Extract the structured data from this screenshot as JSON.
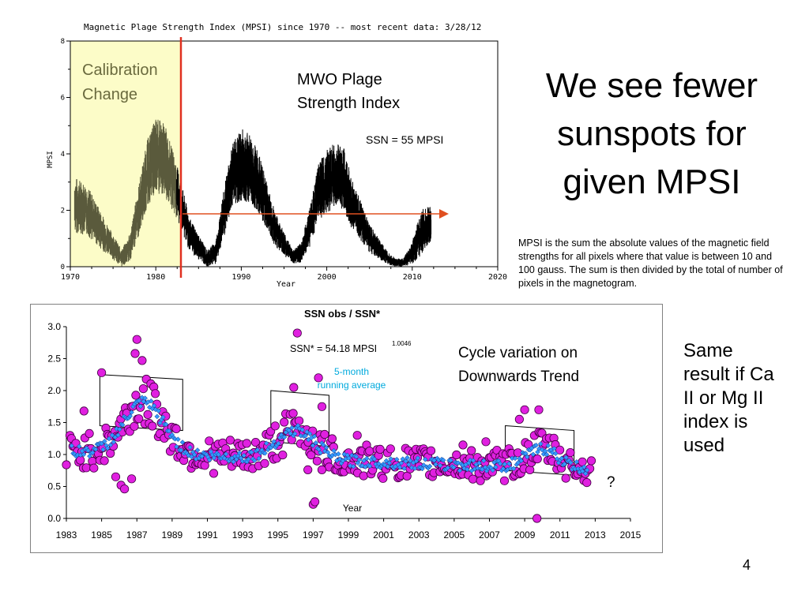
{
  "slide": {
    "title": "We see fewer sunspots for given MPSI",
    "definition": "MPSI is the sum the absolute values of the magnetic field strengths for all pixels where that value is between 10 and 100 gauss. The sum is then divided by the total of number of pixels in the magnetogram.",
    "side_note": "Same result if Ca II or Mg II index is used",
    "page_number": "4"
  },
  "colors": {
    "calibration_band": "#fcfcc8",
    "calibration_line": "#e03020",
    "trend_arrow": "#e05020",
    "early_trace": "#5a5a3c",
    "trace": "#000000",
    "observed_marker": "#e020e0",
    "running_average": "#3399ff",
    "running_label": "#00aadd"
  },
  "chart_data": [
    {
      "type": "line",
      "title": "Magnetic Plage Strength Index (MPSI) since 1970 -- most recent data:  3/28/12",
      "xlabel": "Year",
      "ylabel": "MPSI",
      "xlim": [
        1970,
        2020
      ],
      "ylim": [
        0,
        8
      ],
      "x_ticks": [
        "1970",
        "1980",
        "1990",
        "2000",
        "2010",
        "2020"
      ],
      "y_ticks": [
        "0",
        "2",
        "4",
        "6",
        "8"
      ],
      "grid": false,
      "annotations": {
        "calibration": "Calibration Change",
        "series_label": "MWO Plage Strength Index",
        "reference": "SSN = 55 MPSI"
      },
      "calibration_change_year": 1982.4,
      "reference_level": 1.9,
      "cycle_envelope": {
        "x": [
          1970.5,
          1972,
          1974,
          1976,
          1977,
          1978,
          1979,
          1980,
          1981,
          1982.4,
          1984,
          1986,
          1987,
          1988,
          1989,
          1990,
          1991,
          1992,
          1994,
          1996,
          1997,
          1998,
          1999,
          2000,
          2001,
          2002,
          2003,
          2005,
          2007,
          2008,
          2009,
          2010,
          2011,
          2012.2
        ],
        "mean": [
          2.2,
          2.0,
          1.1,
          0.3,
          0.7,
          2.0,
          3.3,
          3.9,
          3.8,
          2.7,
          1.1,
          0.3,
          0.5,
          1.9,
          3.3,
          3.6,
          3.5,
          3.0,
          1.3,
          0.35,
          0.5,
          1.4,
          2.6,
          3.0,
          3.3,
          3.1,
          2.2,
          1.0,
          0.35,
          0.15,
          0.15,
          0.5,
          1.2,
          1.5
        ],
        "spread": [
          1.0,
          0.9,
          0.6,
          0.3,
          0.5,
          0.9,
          1.2,
          1.4,
          1.3,
          1.0,
          0.6,
          0.3,
          0.4,
          0.9,
          1.1,
          1.3,
          1.2,
          1.1,
          0.6,
          0.25,
          0.35,
          0.7,
          1.0,
          1.2,
          1.1,
          1.1,
          0.9,
          0.5,
          0.25,
          0.15,
          0.15,
          0.4,
          0.8,
          0.7
        ]
      }
    },
    {
      "type": "scatter",
      "title": "SSN obs / SSN*",
      "xlabel": "Year",
      "ylabel": "",
      "xlim": [
        1983,
        2015
      ],
      "ylim": [
        0,
        3.0
      ],
      "x_ticks": [
        "1983",
        "1985",
        "1987",
        "1989",
        "1991",
        "1993",
        "1995",
        "1997",
        "1999",
        "2001",
        "2003",
        "2005",
        "2007",
        "2009",
        "2011",
        "2013",
        "2015"
      ],
      "y_ticks": [
        "0.0",
        "0.5",
        "1.0",
        "1.5",
        "2.0",
        "2.5",
        "3.0"
      ],
      "grid": false,
      "annotations": {
        "formula": "SSN* = 54.18 MPSI",
        "exponent": "1.0046",
        "running_label_1": "5-month",
        "running_label_2": "running average",
        "trend_label_1": "Cycle variation on",
        "trend_label_2": "Downwards Trend",
        "question": "?"
      },
      "highlight_boxes": [
        {
          "x": [
            1984.9,
            1989.6
          ],
          "y": [
            1.45,
            2.25
          ]
        },
        {
          "x": [
            1994.6,
            1997.9
          ],
          "y": [
            1.2,
            2.0
          ]
        },
        {
          "x": [
            2007.9,
            2011.8
          ],
          "y": [
            0.75,
            1.45
          ]
        }
      ],
      "outliers": [
        {
          "x": 1985.0,
          "y": 2.28
        },
        {
          "x": 1987.0,
          "y": 2.8
        },
        {
          "x": 1986.9,
          "y": 2.58
        },
        {
          "x": 1987.3,
          "y": 2.47
        },
        {
          "x": 1986.1,
          "y": 0.52
        },
        {
          "x": 1986.7,
          "y": 0.62
        },
        {
          "x": 1985.8,
          "y": 0.65
        },
        {
          "x": 1986.3,
          "y": 0.46
        },
        {
          "x": 1984.0,
          "y": 1.68
        },
        {
          "x": 1983.0,
          "y": 0.84
        },
        {
          "x": 1996.1,
          "y": 2.9
        },
        {
          "x": 1997.3,
          "y": 2.2
        },
        {
          "x": 1995.9,
          "y": 2.05
        },
        {
          "x": 1996.7,
          "y": 0.76
        },
        {
          "x": 1997.5,
          "y": 0.76
        },
        {
          "x": 1997.0,
          "y": 0.22
        },
        {
          "x": 1997.1,
          "y": 0.26
        },
        {
          "x": 2009.0,
          "y": 1.7
        },
        {
          "x": 2009.8,
          "y": 1.7
        },
        {
          "x": 2009.7,
          "y": 0.0
        },
        {
          "x": 2008.7,
          "y": 1.55
        },
        {
          "x": 2006.8,
          "y": 1.2
        },
        {
          "x": 2005.5,
          "y": 1.15
        },
        {
          "x": 1999.5,
          "y": 1.3
        },
        {
          "x": 1997.5,
          "y": 1.75
        }
      ]
    }
  ]
}
